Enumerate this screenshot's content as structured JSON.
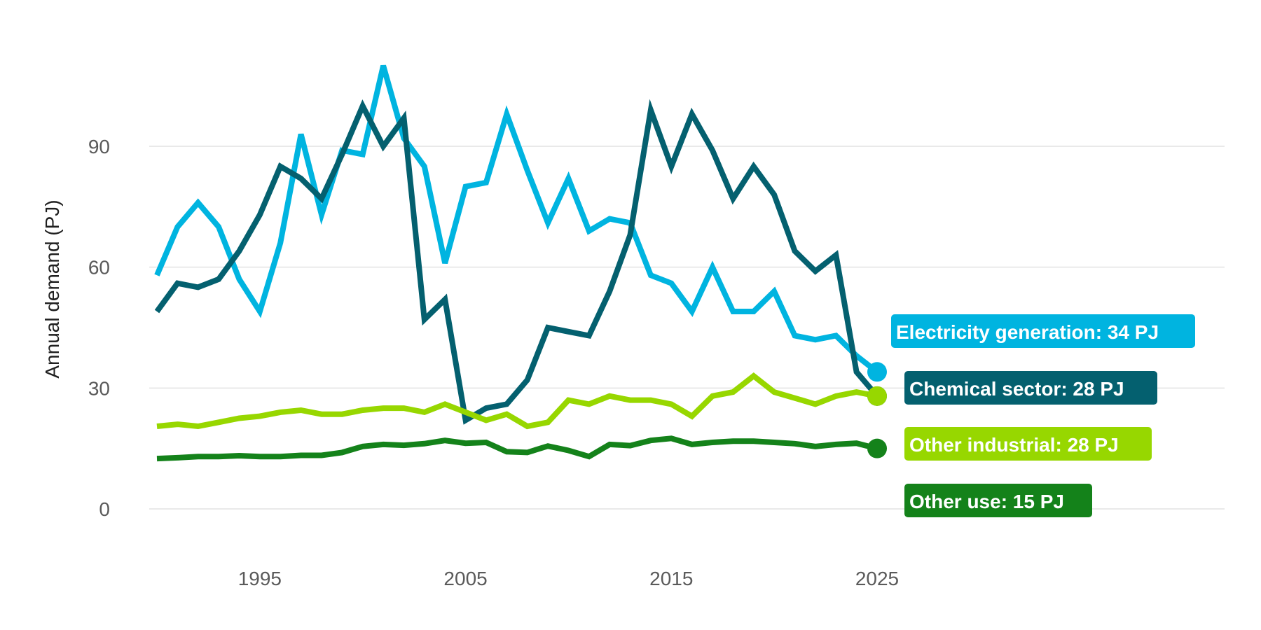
{
  "chart_data": {
    "type": "line",
    "title": "",
    "xlabel": "",
    "ylabel": "Annual demand (PJ)",
    "xlim": [
      1990,
      2025
    ],
    "ylim": [
      0,
      110
    ],
    "x_ticks": [
      1995,
      2005,
      2015,
      2025
    ],
    "y_ticks": [
      0,
      30,
      60,
      90
    ],
    "grid": "horizontal",
    "legend": "direct end labels",
    "x": [
      1990,
      1991,
      1992,
      1993,
      1994,
      1995,
      1996,
      1997,
      1998,
      1999,
      2000,
      2001,
      2002,
      2003,
      2004,
      2005,
      2006,
      2007,
      2008,
      2009,
      2010,
      2011,
      2012,
      2013,
      2014,
      2015,
      2016,
      2017,
      2018,
      2019,
      2020,
      2021,
      2022,
      2023,
      2024,
      2025
    ],
    "series": [
      {
        "name": "Electricity generation",
        "end_label": "Electricity generation: 34 PJ",
        "color": "#00b4e0",
        "values": [
          58,
          70,
          76,
          70,
          57,
          49,
          66,
          93,
          73,
          89,
          88,
          110,
          92,
          85,
          61,
          80,
          81,
          98,
          84,
          71,
          82,
          69,
          72,
          71,
          58,
          56,
          49,
          60,
          49,
          49,
          54,
          43,
          42,
          43,
          38,
          34
        ]
      },
      {
        "name": "Chemical sector",
        "end_label": "Chemical sector: 28 PJ",
        "color": "#04606f",
        "values": [
          49,
          56,
          55,
          57,
          64,
          73,
          85,
          82,
          77,
          88,
          100,
          90,
          97,
          47,
          52,
          22,
          25,
          26,
          32,
          45,
          44,
          43,
          54,
          68,
          99,
          85,
          98,
          89,
          77,
          85,
          78,
          64,
          59,
          63,
          34,
          28
        ]
      },
      {
        "name": "Other industrial",
        "end_label": "Other industrial: 28 PJ",
        "color": "#97d700",
        "values": [
          20.5,
          21,
          20.5,
          21.5,
          22.5,
          23,
          24,
          24.5,
          23.5,
          23.5,
          24.5,
          25,
          25,
          24,
          26,
          24,
          22,
          23.5,
          20.5,
          21.5,
          27,
          26,
          28,
          27,
          27,
          26,
          23,
          28,
          29,
          33,
          29,
          27.5,
          26,
          28,
          29,
          28
        ]
      },
      {
        "name": "Other use",
        "end_label": "Other use: 15 PJ",
        "color": "#14821a",
        "values": [
          12.5,
          12.7,
          13,
          13,
          13.2,
          13,
          13,
          13.3,
          13.3,
          14,
          15.5,
          16,
          15.8,
          16.2,
          17,
          16.3,
          16.5,
          14.2,
          14,
          15.6,
          14.5,
          13,
          16,
          15.7,
          17,
          17.5,
          16,
          16.5,
          16.8,
          16.8,
          16.5,
          16.2,
          15.5,
          16,
          16.3,
          15
        ]
      }
    ]
  }
}
